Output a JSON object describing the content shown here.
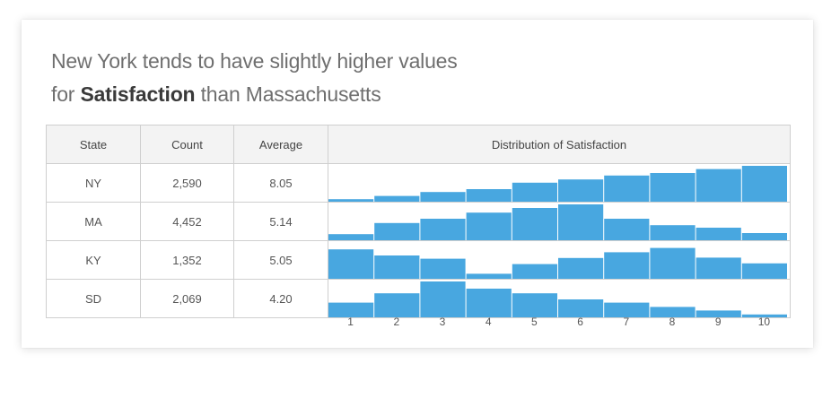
{
  "title": {
    "line1": "New York tends to have slightly higher values",
    "prefix": "for ",
    "bold": "Satisfaction",
    "suffix": " than Massachusetts"
  },
  "table": {
    "headers": {
      "state": "State",
      "count": "Count",
      "average": "Average",
      "distribution": "Distribution of Satisfaction"
    },
    "rows": [
      {
        "state": "NY",
        "count": "2,590",
        "average": "8.05"
      },
      {
        "state": "MA",
        "count": "4,452",
        "average": "5.14"
      },
      {
        "state": "KY",
        "count": "1,352",
        "average": "5.05"
      },
      {
        "state": "SD",
        "count": "2,069",
        "average": "4.20"
      }
    ]
  },
  "colors": {
    "bar": "#48a7e0"
  },
  "chart_data": {
    "type": "bar",
    "categories": [
      "1",
      "2",
      "3",
      "4",
      "5",
      "6",
      "7",
      "8",
      "9",
      "10"
    ],
    "series": [
      {
        "name": "NY",
        "values": [
          0.07,
          0.16,
          0.27,
          0.35,
          0.53,
          0.62,
          0.73,
          0.8,
          0.91,
          1.0
        ]
      },
      {
        "name": "MA",
        "values": [
          0.17,
          0.48,
          0.6,
          0.77,
          0.9,
          1.0,
          0.6,
          0.42,
          0.35,
          0.2
        ]
      },
      {
        "name": "KY",
        "values": [
          0.82,
          0.65,
          0.56,
          0.14,
          0.41,
          0.58,
          0.74,
          0.86,
          0.59,
          0.43
        ]
      },
      {
        "name": "SD",
        "values": [
          0.41,
          0.67,
          1.0,
          0.8,
          0.67,
          0.5,
          0.41,
          0.29,
          0.19,
          0.08
        ]
      }
    ],
    "xlabel": "Distribution of Satisfaction",
    "ylabel": "",
    "ylim": [
      0,
      1
    ]
  }
}
